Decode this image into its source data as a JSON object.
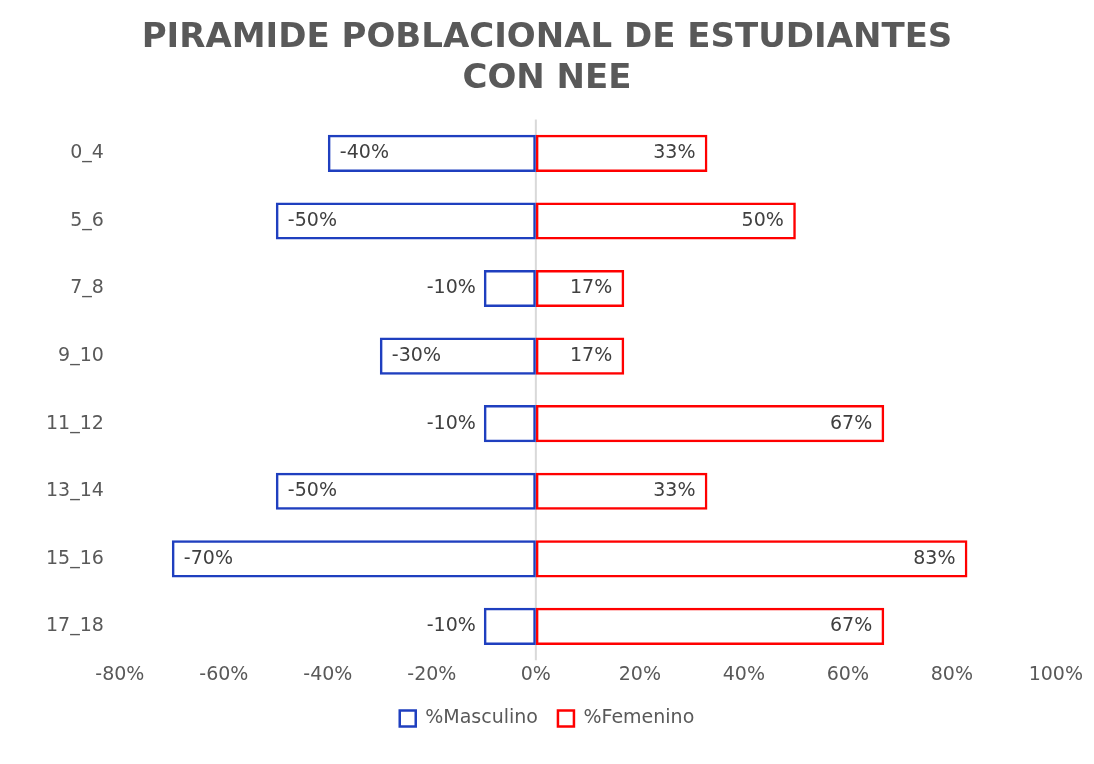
{
  "chart_data": {
    "type": "bar",
    "orientation": "horizontal",
    "stacked": true,
    "title": "PIRAMIDE POBLACIONAL DE ESTUDIANTES CON NEE",
    "categories": [
      "0_4",
      "5_6",
      "7_8",
      "9_10",
      "11_12",
      "13_14",
      "15_16",
      "17_18"
    ],
    "series": [
      {
        "name": "%Masculino",
        "color": "#1f3fbf",
        "values": [
          -40,
          -50,
          -10,
          -30,
          -10,
          -50,
          -70,
          -10
        ],
        "value_labels": [
          "-40%",
          "-50%",
          "-10%",
          "-30%",
          "-10%",
          "-50%",
          "-70%",
          "-10%"
        ]
      },
      {
        "name": "%Femenino",
        "color": "#ff0000",
        "values": [
          33,
          50,
          17,
          17,
          67,
          33,
          83,
          67
        ],
        "value_labels": [
          "33%",
          "50%",
          "17%",
          "17%",
          "67%",
          "33%",
          "83%",
          "67%"
        ]
      }
    ],
    "xlim": [
      -80,
      100
    ],
    "xticks": [
      {
        "value": -80,
        "label": "-80%"
      },
      {
        "value": -60,
        "label": "-60%"
      },
      {
        "value": -40,
        "label": "-40%"
      },
      {
        "value": -20,
        "label": "-20%"
      },
      {
        "value": 0,
        "label": "0%"
      },
      {
        "value": 20,
        "label": "20%"
      },
      {
        "value": 40,
        "label": "40%"
      },
      {
        "value": 60,
        "label": "60%"
      },
      {
        "value": 80,
        "label": "80%"
      },
      {
        "value": 100,
        "label": "100%"
      }
    ],
    "ref_lines": [
      {
        "axis": "x",
        "value": 0,
        "color": "#d9d9d9"
      }
    ],
    "grid": false,
    "legend": "bottom"
  }
}
